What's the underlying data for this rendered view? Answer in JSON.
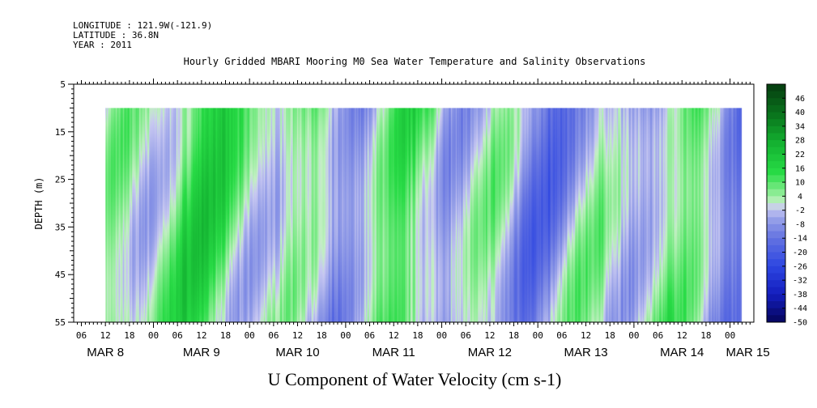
{
  "meta": {
    "longitude": "LONGITUDE : 121.9W(-121.9)",
    "latitude": "LATITUDE : 36.8N",
    "year": "YEAR : 2011"
  },
  "chart_data": {
    "type": "heatmap",
    "title": "Hourly Gridded MBARI Mooring M0 Sea Water Temperature and Salinity Observations",
    "ylabel": "DEPTH (m)",
    "xlabel": "U Component of Water Velocity (cm s-1)",
    "y_axis": {
      "range": [
        5,
        55
      ],
      "inverted": true,
      "ticks": [
        "5",
        "15",
        "25",
        "35",
        "45",
        "55"
      ]
    },
    "x_axis": {
      "hour_ticks": [
        "06",
        "12",
        "18",
        "00",
        "06",
        "12",
        "18",
        "00",
        "06",
        "12",
        "18",
        "00",
        "06",
        "12",
        "18",
        "00",
        "06",
        "12",
        "18",
        "00",
        "06",
        "12",
        "18",
        "00",
        "06",
        "12",
        "18",
        "00"
      ],
      "day_labels": [
        "MAR  8",
        "MAR  9",
        "MAR 10",
        "MAR 11",
        "MAR 12",
        "MAR 13",
        "MAR 14",
        "MAR 15"
      ]
    },
    "data_extent": {
      "depth_min": 10,
      "depth_max": 55,
      "start": "MAR 8 12:00",
      "end": "MAR 15 03:00"
    },
    "colorbar": {
      "labels": [
        "46",
        "40",
        "34",
        "28",
        "22",
        "16",
        "10",
        "4",
        "-2",
        "-8",
        "-14",
        "-20",
        "-26",
        "-32",
        "-38",
        "-44",
        "-50"
      ],
      "range": [
        -50,
        52
      ]
    },
    "colors": {
      "positive": "#22e045",
      "negative": "#3c50e0",
      "neutral": "#c8c8f0"
    }
  }
}
